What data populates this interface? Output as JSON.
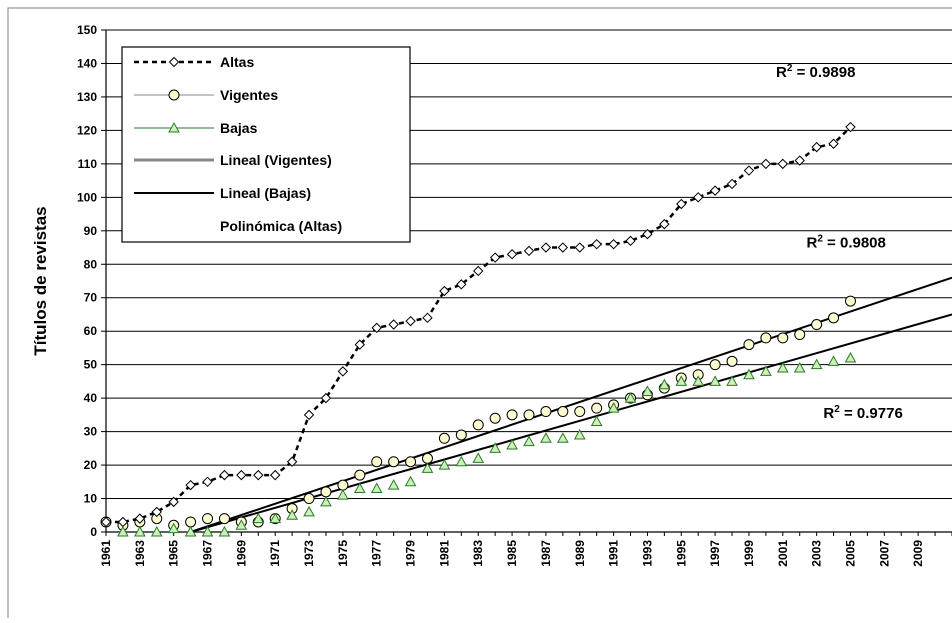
{
  "chart_data": {
    "type": "line",
    "title": "",
    "xlabel": "",
    "ylabel": "Títulos de revistas",
    "xlim": [
      1961,
      2011
    ],
    "ylim": [
      0,
      150
    ],
    "y_ticks": [
      0,
      10,
      20,
      30,
      40,
      50,
      60,
      70,
      80,
      90,
      100,
      110,
      120,
      130,
      140,
      150
    ],
    "x_tick_labels": [
      "1961",
      "1963",
      "1965",
      "1967",
      "1969",
      "1971",
      "1973",
      "1975",
      "1977",
      "1979",
      "1981",
      "1983",
      "1985",
      "1987",
      "1989",
      "1991",
      "1993",
      "1995",
      "1997",
      "1999",
      "2001",
      "2003",
      "2005",
      "2007",
      "2009"
    ],
    "grid": "horizontal",
    "legend_position": "top-left",
    "legend": [
      "Altas",
      "Vigentes",
      "Bajas",
      "Lineal (Vigentes)",
      "Lineal (Bajas)",
      "Polinómica (Altas)"
    ],
    "series": [
      {
        "name": "Altas",
        "marker": "diamond",
        "x": [
          1961,
          1962,
          1963,
          1964,
          1965,
          1966,
          1967,
          1968,
          1969,
          1970,
          1971,
          1972,
          1973,
          1974,
          1975,
          1976,
          1977,
          1978,
          1979,
          1980,
          1981,
          1982,
          1983,
          1984,
          1985,
          1986,
          1987,
          1988,
          1989,
          1990,
          1991,
          1992,
          1993,
          1994,
          1995,
          1996,
          1997,
          1998,
          1999,
          2000,
          2001,
          2002,
          2003,
          2004,
          2005
        ],
        "values": [
          3,
          3,
          4,
          6,
          9,
          14,
          15,
          17,
          17,
          17,
          17,
          21,
          35,
          40,
          48,
          56,
          61,
          62,
          63,
          64,
          72,
          74,
          78,
          82,
          83,
          84,
          85,
          85,
          85,
          86,
          86,
          87,
          89,
          92,
          98,
          100,
          102,
          104,
          108,
          110,
          110,
          111,
          115,
          116,
          121
        ]
      },
      {
        "name": "Vigentes",
        "marker": "circle",
        "x": [
          1961,
          1962,
          1963,
          1964,
          1965,
          1966,
          1967,
          1968,
          1969,
          1970,
          1971,
          1972,
          1973,
          1974,
          1975,
          1976,
          1977,
          1978,
          1979,
          1980,
          1981,
          1982,
          1983,
          1984,
          1985,
          1986,
          1987,
          1988,
          1989,
          1990,
          1991,
          1992,
          1993,
          1994,
          1995,
          1996,
          1997,
          1998,
          1999,
          2000,
          2001,
          2002,
          2003,
          2004,
          2005
        ],
        "values": [
          3,
          2,
          3,
          4,
          2,
          3,
          4,
          4,
          3,
          3,
          4,
          7,
          10,
          12,
          14,
          17,
          21,
          21,
          21,
          22,
          28,
          29,
          32,
          34,
          35,
          35,
          36,
          36,
          36,
          37,
          38,
          40,
          41,
          43,
          46,
          47,
          50,
          51,
          56,
          58,
          58,
          59,
          62,
          64,
          69
        ]
      },
      {
        "name": "Bajas",
        "marker": "triangle",
        "x": [
          1962,
          1963,
          1964,
          1965,
          1966,
          1967,
          1968,
          1969,
          1970,
          1971,
          1972,
          1973,
          1974,
          1975,
          1976,
          1977,
          1978,
          1979,
          1980,
          1981,
          1982,
          1983,
          1984,
          1985,
          1986,
          1987,
          1988,
          1989,
          1990,
          1991,
          1992,
          1993,
          1994,
          1995,
          1996,
          1997,
          1998,
          1999,
          2000,
          2001,
          2002,
          2003,
          2004,
          2005
        ],
        "values": [
          0,
          0,
          0,
          1,
          0,
          0,
          0,
          2,
          4,
          4,
          5,
          6,
          9,
          11,
          13,
          13,
          14,
          15,
          19,
          20,
          21,
          22,
          25,
          26,
          27,
          28,
          28,
          29,
          33,
          37,
          40,
          42,
          44,
          45,
          45,
          45,
          45,
          47,
          48,
          49,
          49,
          50,
          51,
          52
        ]
      },
      {
        "name": "Lineal (Vigentes)",
        "type": "trendline",
        "x": [
          1966,
          2011
        ],
        "values": [
          0,
          76
        ]
      },
      {
        "name": "Lineal (Bajas)",
        "type": "trendline",
        "x": [
          1966,
          2011
        ],
        "values": [
          0,
          65
        ]
      }
    ],
    "annotations": [
      {
        "base": "R",
        "sup": "2",
        "rest": " = 0.9898",
        "x_year": 2000.6,
        "y": 136
      },
      {
        "base": "R",
        "sup": "2",
        "rest": " = 0.9808",
        "x_year": 2002.4,
        "y": 85
      },
      {
        "base": "R",
        "sup": "2",
        "rest": " = 0.9776",
        "x_year": 2003.4,
        "y": 34
      }
    ]
  }
}
